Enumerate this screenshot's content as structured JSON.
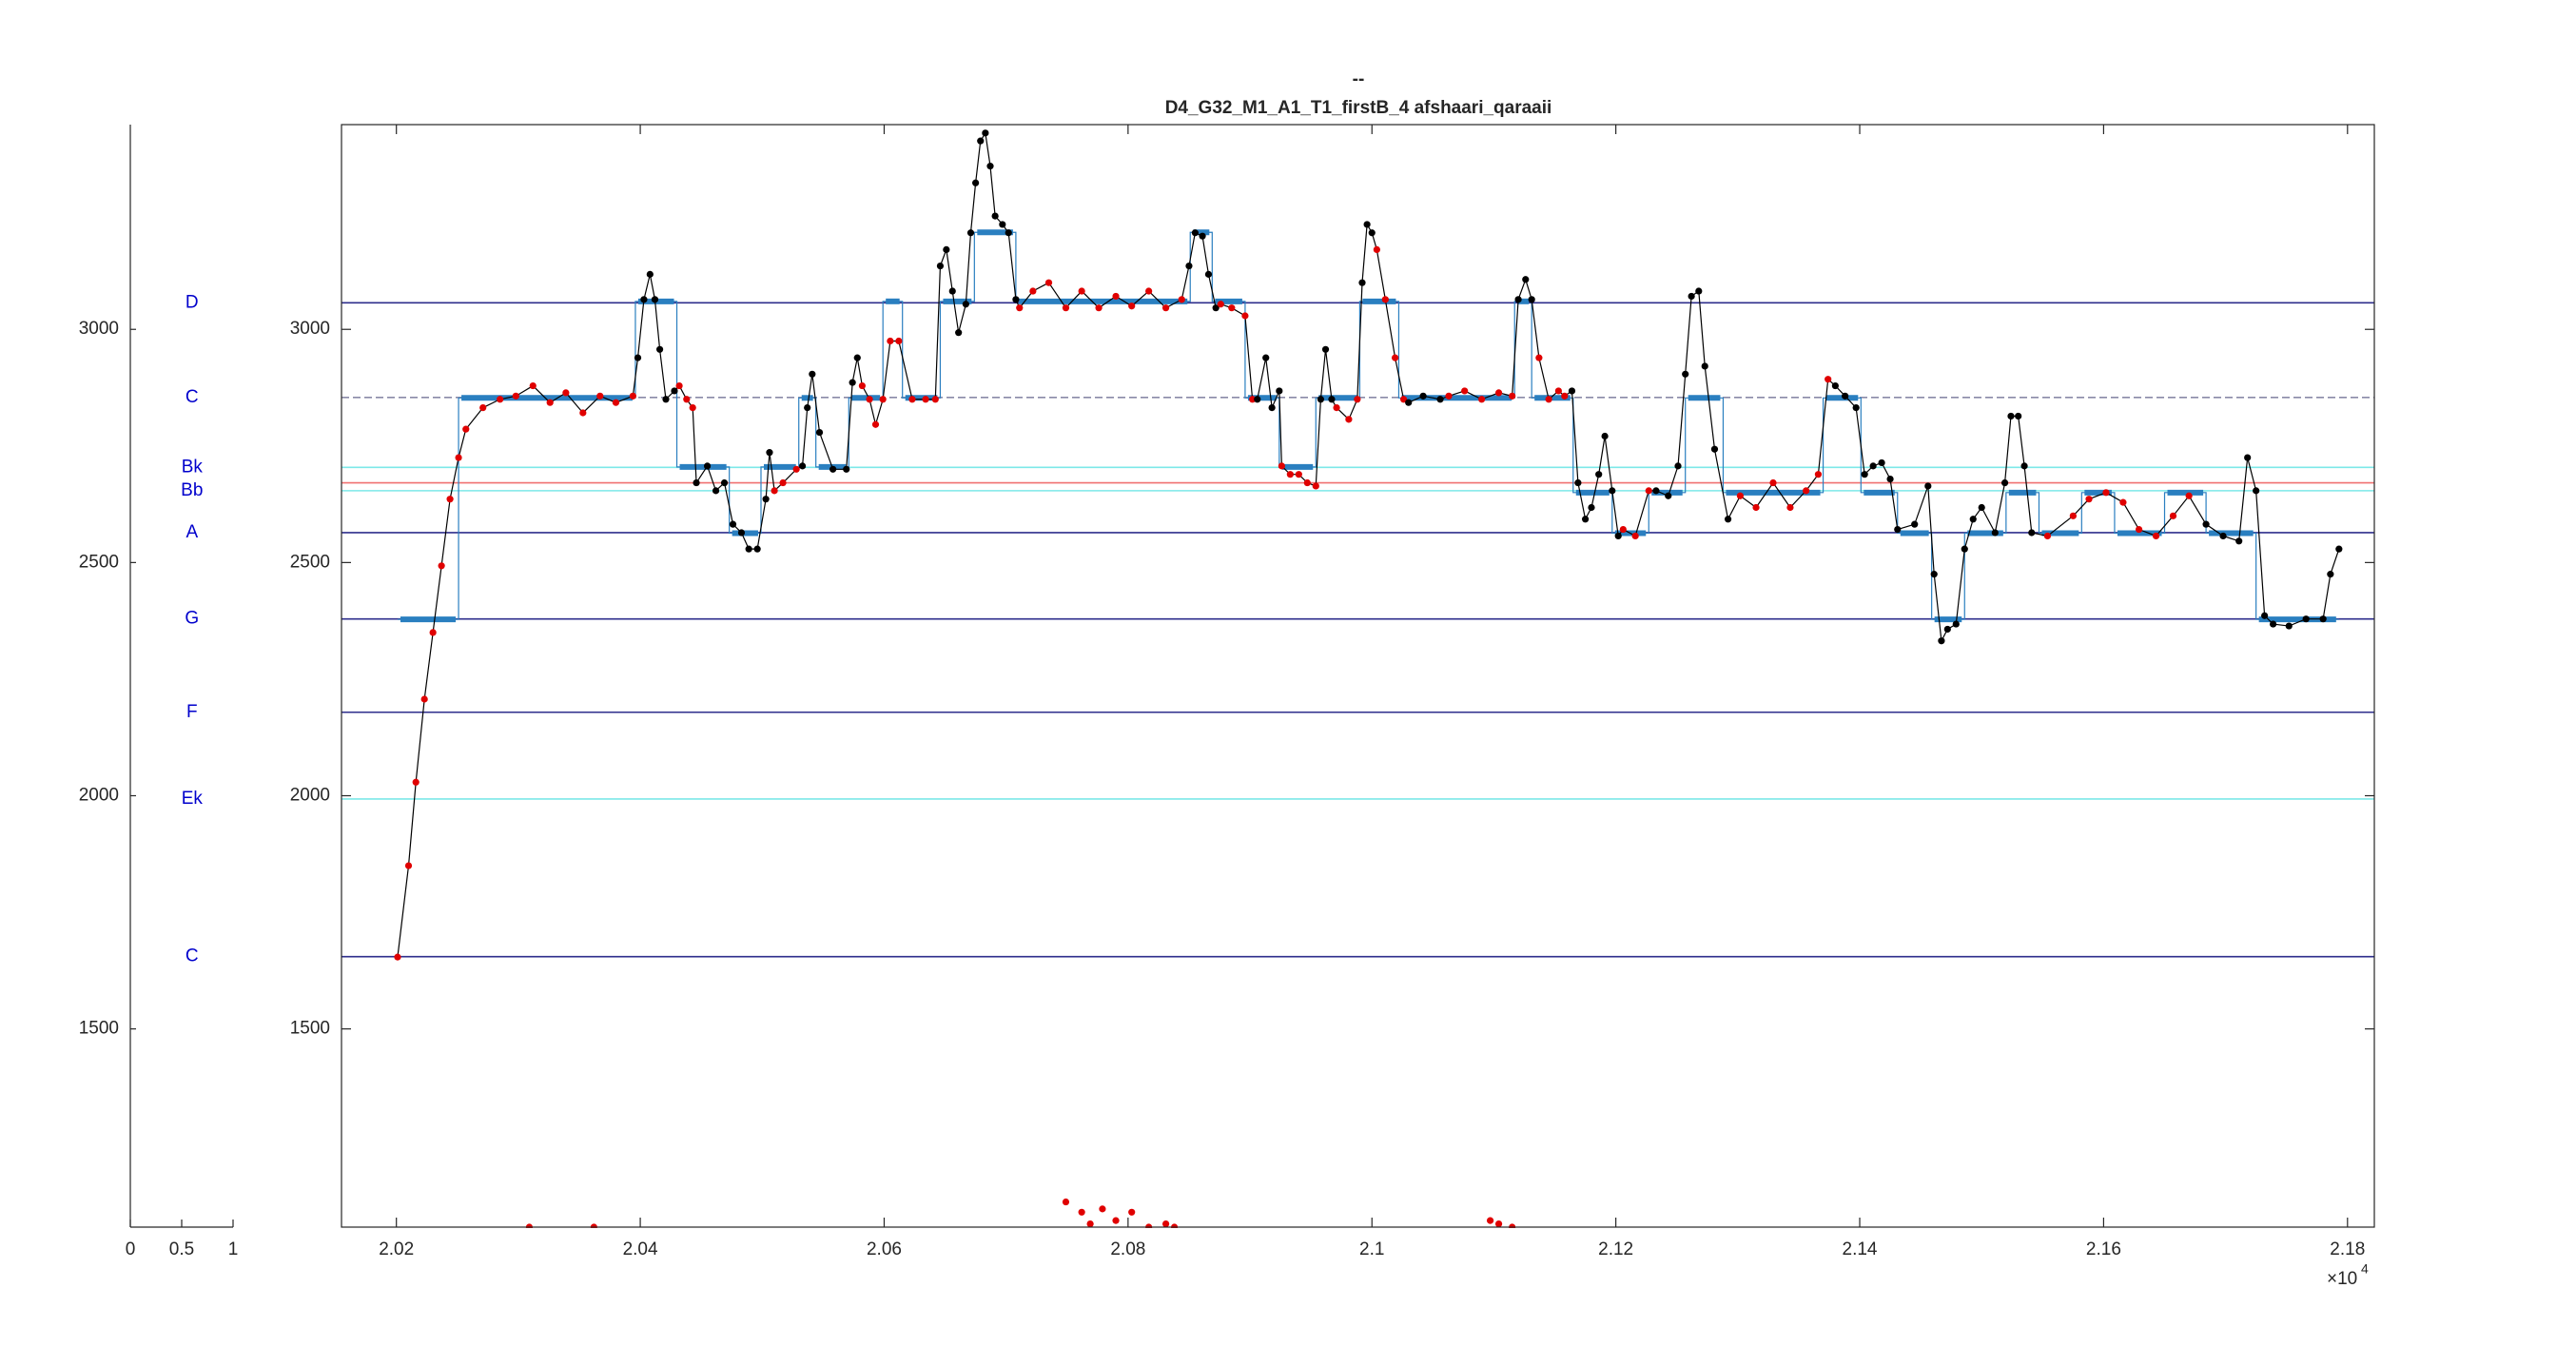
{
  "chart_data": {
    "type": "pitch-contour",
    "title": "--",
    "subtitle": "D4_G32_M1_A1_T1_firstB_4 afshaari_qaraaii",
    "xlim": [
      20155,
      20822
    ],
    "xlim_main": [
      20155,
      20822
    ],
    "main_xlim": [
      20155,
      21822
    ],
    "ylim": [
      1075,
      3439
    ],
    "xticks": [
      {
        "value": 20200,
        "label": "2.02"
      },
      {
        "value": 20400,
        "label": "2.04"
      },
      {
        "value": 20600,
        "label": "2.06"
      },
      {
        "value": 20800,
        "label": "2.08"
      },
      {
        "value": 21000,
        "label": "2.1"
      },
      {
        "value": 21200,
        "label": "2.12"
      },
      {
        "value": 21400,
        "label": "2.14"
      },
      {
        "value": 21600,
        "label": "2.16"
      },
      {
        "value": 21800,
        "label": "2.18"
      }
    ],
    "x_exponent_base": "×10",
    "x_exponent": "4",
    "yticks": [
      1500,
      2000,
      2500,
      3000
    ],
    "side_xlim": [
      0,
      1
    ],
    "side_xticks": [
      0,
      0.5,
      1
    ],
    "label_x": 0.6,
    "reference_lines": [
      {
        "label": "D",
        "value": 3057,
        "color": "#2e2e8c"
      },
      {
        "label": "C",
        "value": 2854,
        "color": "#8a8aa8",
        "dashed": true
      },
      {
        "label": "Bk",
        "value": 2704,
        "color": "#7de8e8"
      },
      {
        "label": null,
        "value": 2671,
        "color": "#f07070"
      },
      {
        "label": "Bb",
        "value": 2654,
        "color": "#7de8e8"
      },
      {
        "label": "A",
        "value": 2564,
        "color": "#2e2e8c"
      },
      {
        "label": "G",
        "value": 2379,
        "color": "#2e2e8c"
      },
      {
        "label": "F",
        "value": 2179,
        "color": "#2e2e8c"
      },
      {
        "label": "Ek",
        "value": 1993,
        "color": "#7de8e8"
      },
      {
        "label": "C",
        "value": 1655,
        "color": "#2e2e8c"
      }
    ],
    "label_color": "#0000cc",
    "steps": {
      "color": "#2a7fc0",
      "x": [
        20201,
        20251,
        20396,
        20430,
        20473,
        20499,
        20530,
        20544,
        20571,
        20599,
        20615,
        20646,
        20674,
        20708,
        20851,
        20869,
        20896,
        20924,
        20954,
        20990,
        21022,
        21117,
        21131,
        21165,
        21197,
        21227,
        21257,
        21288,
        21370,
        21401,
        21431,
        21459,
        21486,
        21520,
        21547,
        21582,
        21609,
        21650,
        21684,
        21725,
        21793
      ],
      "values": [
        2378,
        2853,
        3060,
        2705,
        2563,
        2705,
        2853,
        2705,
        2853,
        3060,
        2853,
        3060,
        3208,
        3060,
        3208,
        3060,
        2853,
        2705,
        2853,
        3060,
        2853,
        3060,
        2853,
        2650,
        2563,
        2650,
        2853,
        2650,
        2853,
        2650,
        2563,
        2378,
        2563,
        2650,
        2563,
        2650,
        2563,
        2650,
        2563,
        2378
      ]
    },
    "contour": [
      {
        "color": "#e00000",
        "x": [
          20201,
          20210,
          20216,
          20223,
          20230,
          20237,
          20244,
          20251,
          20257,
          20271,
          20285,
          20298,
          20312,
          20326,
          20339,
          20353,
          20367,
          20380,
          20394
        ],
        "values": [
          1654,
          1850,
          2029,
          2207,
          2350,
          2493,
          2636,
          2725,
          2786,
          2832,
          2850,
          2857,
          2879,
          2843,
          2864,
          2821,
          2857,
          2843,
          2857
        ]
      },
      {
        "color": "#000000",
        "x": [
          20398,
          20403,
          20408,
          20412,
          20416,
          20421,
          20428
        ],
        "values": [
          2939,
          3064,
          3118,
          3064,
          2957,
          2850,
          2868
        ]
      },
      {
        "color": "#e00000",
        "x": [
          20432,
          20438,
          20443
        ],
        "values": [
          2879,
          2850,
          2832
        ]
      },
      {
        "color": "#000000",
        "x": [
          20446,
          20455,
          20462,
          20469,
          20476,
          20483,
          20489,
          20496,
          20503,
          20506
        ],
        "values": [
          2671,
          2707,
          2654,
          2671,
          2582,
          2564,
          2529,
          2529,
          2636,
          2736
        ]
      },
      {
        "color": "#e00000",
        "x": [
          20510,
          20517,
          20528
        ],
        "values": [
          2654,
          2671,
          2700
        ]
      },
      {
        "color": "#000000",
        "x": [
          20533,
          20537,
          20541,
          20547,
          20558,
          20569,
          20574,
          20578
        ],
        "values": [
          2707,
          2832,
          2904,
          2779,
          2700,
          2700,
          2886,
          2939
        ]
      },
      {
        "color": "#e00000",
        "x": [
          20582,
          20588,
          20593,
          20599,
          20605,
          20612,
          20623,
          20634,
          20642
        ],
        "values": [
          2879,
          2850,
          2796,
          2850,
          2975,
          2975,
          2850,
          2850,
          2850
        ]
      },
      {
        "color": "#000000",
        "x": [
          20646,
          20651,
          20656,
          20661,
          20667,
          20671,
          20675,
          20679,
          20683,
          20687,
          20691,
          20697,
          20702,
          20708
        ],
        "values": [
          3136,
          3171,
          3082,
          2993,
          3054,
          3207,
          3314,
          3404,
          3421,
          3350,
          3243,
          3225,
          3207,
          3064
        ]
      },
      {
        "color": "#e00000",
        "x": [
          20711,
          20722,
          20735,
          20749,
          20762,
          20776,
          20790,
          20803,
          20817,
          20831,
          20844
        ],
        "values": [
          3046,
          3082,
          3100,
          3046,
          3082,
          3046,
          3071,
          3050,
          3082,
          3046,
          3064
        ]
      },
      {
        "color": "#000000",
        "x": [
          20850,
          20855,
          20861,
          20866,
          20872
        ],
        "values": [
          3136,
          3207,
          3200,
          3118,
          3046
        ]
      },
      {
        "color": "#e00000",
        "x": [
          20876,
          20885,
          20896,
          20902
        ],
        "values": [
          3054,
          3046,
          3029,
          2850
        ]
      },
      {
        "color": "#000000",
        "x": [
          20906,
          20913,
          20918,
          20924
        ],
        "values": [
          2850,
          2939,
          2832,
          2868
        ]
      },
      {
        "color": "#e00000",
        "x": [
          20926,
          20933,
          20940,
          20947,
          20954
        ],
        "values": [
          2707,
          2689,
          2689,
          2671,
          2664
        ]
      },
      {
        "color": "#000000",
        "x": [
          20958,
          20962,
          20967
        ],
        "values": [
          2850,
          2957,
          2850
        ]
      },
      {
        "color": "#e00000",
        "x": [
          20971,
          20981,
          20988
        ],
        "values": [
          2832,
          2807,
          2850
        ]
      },
      {
        "color": "#000000",
        "x": [
          20992,
          20996,
          21000
        ],
        "values": [
          3100,
          3225,
          3207
        ]
      },
      {
        "color": "#e00000",
        "x": [
          21004,
          21011,
          21019,
          21026
        ],
        "values": [
          3171,
          3064,
          2939,
          2850
        ]
      },
      {
        "color": "#000000",
        "x": [
          21030,
          21042,
          21056
        ],
        "values": [
          2843,
          2857,
          2850
        ]
      },
      {
        "color": "#e00000",
        "x": [
          21063,
          21076,
          21090,
          21104,
          21115
        ],
        "values": [
          2857,
          2868,
          2850,
          2864,
          2857
        ]
      },
      {
        "color": "#000000",
        "x": [
          21120,
          21126,
          21131
        ],
        "values": [
          3064,
          3107,
          3064
        ]
      },
      {
        "color": "#e00000",
        "x": [
          21137,
          21145,
          21153,
          21158
        ],
        "values": [
          2939,
          2850,
          2868,
          2857
        ]
      },
      {
        "color": "#000000",
        "x": [
          21164,
          21169,
          21175,
          21180,
          21186,
          21191,
          21197,
          21202
        ],
        "values": [
          2868,
          2671,
          2593,
          2618,
          2689,
          2771,
          2654,
          2557
        ]
      },
      {
        "color": "#e00000",
        "x": [
          21206,
          21216,
          21227
        ],
        "values": [
          2571,
          2557,
          2654
        ]
      },
      {
        "color": "#000000",
        "x": [
          21233,
          21243,
          21251,
          21257,
          21262,
          21268,
          21273,
          21281,
          21292
        ],
        "values": [
          2654,
          2643,
          2707,
          2904,
          3071,
          3082,
          2921,
          2743,
          2593
        ]
      },
      {
        "color": "#e00000",
        "x": [
          21302,
          21315,
          21329,
          21343,
          21356,
          21366,
          21374
        ],
        "values": [
          2643,
          2618,
          2671,
          2618,
          2654,
          2689,
          2893
        ]
      },
      {
        "color": "#000000",
        "x": [
          21380,
          21388,
          21397,
          21404,
          21411,
          21418,
          21425,
          21431,
          21445,
          21456
        ],
        "values": [
          2879,
          2857,
          2832,
          2689,
          2707,
          2714,
          2679,
          2571,
          2582,
          2664
        ]
      },
      {
        "color": "#000000",
        "x": [
          21461,
          21467,
          21472,
          21479,
          21486,
          21493,
          21500,
          21511,
          21519,
          21524,
          21530,
          21535,
          21541
        ],
        "values": [
          2475,
          2332,
          2357,
          2368,
          2529,
          2593,
          2618,
          2564,
          2671,
          2814,
          2814,
          2707,
          2564
        ]
      },
      {
        "color": "#e00000",
        "x": [
          21554,
          21575,
          21588,
          21602,
          21616,
          21629,
          21643,
          21657,
          21670
        ],
        "values": [
          2557,
          2600,
          2636,
          2650,
          2629,
          2571,
          2557,
          2600,
          2643
        ]
      },
      {
        "color": "#000000",
        "x": [
          21684,
          21698,
          21711,
          21718,
          21725,
          21732,
          21739,
          21752,
          21766,
          21780,
          21786,
          21793
        ],
        "values": [
          2582,
          2557,
          2546,
          2725,
          2654,
          2386,
          2368,
          2364,
          2379,
          2379,
          2475,
          2529
        ]
      }
    ],
    "low_points": [
      {
        "color": "#e00000",
        "x": [
          20309
        ],
        "values": [
          1075
        ]
      },
      {
        "color": "#e00000",
        "x": [
          20362
        ],
        "values": [
          1075
        ]
      },
      {
        "color": "#e00000",
        "x": [
          20749,
          20762,
          20769,
          20779,
          20790,
          20803,
          20817,
          20831,
          20838
        ],
        "values": [
          1129,
          1107,
          1082,
          1114,
          1089,
          1107,
          1075,
          1082,
          1075
        ]
      },
      {
        "color": "#e00000",
        "x": [
          21097,
          21104,
          21115
        ],
        "values": [
          1089,
          1082,
          1075
        ]
      }
    ]
  }
}
